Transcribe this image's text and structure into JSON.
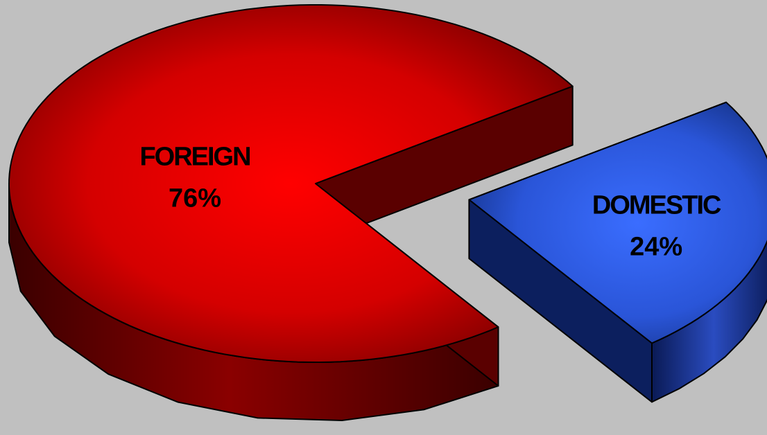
{
  "chart_data": {
    "type": "pie",
    "title": "",
    "style": "3d-exploded",
    "background": "#c0c0c0",
    "slices": [
      {
        "label": "FOREIGN",
        "value": 76,
        "value_label": "76%",
        "color": "#e60000",
        "side_color": "#5a0000"
      },
      {
        "label": "DOMESTIC",
        "value": 24,
        "value_label": "24%",
        "color": "#3366ff",
        "side_color": "#0c1f5e"
      }
    ]
  }
}
